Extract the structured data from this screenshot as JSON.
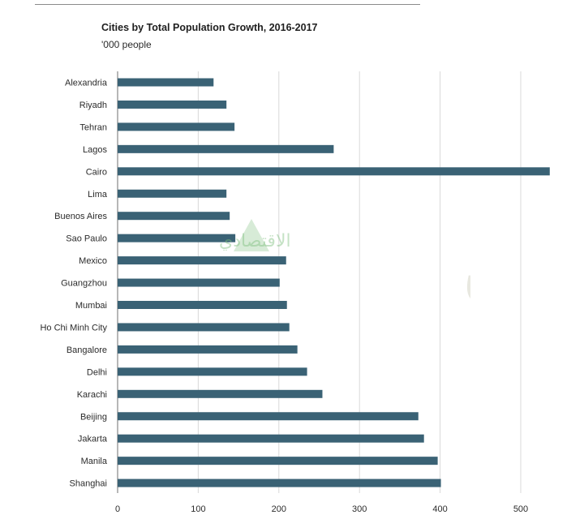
{
  "header": {
    "title": "Cities by Total Population Growth, 2016-2017",
    "subtitle": "'000 people"
  },
  "watermark": {
    "text": "الميزان",
    "subtext": "الاقتصادي"
  },
  "colors": {
    "bar": "#3a6275",
    "grid": "#d9d9d9",
    "axis": "#6f6f6f",
    "text": "#2b2b2b"
  },
  "chart_data": {
    "type": "bar",
    "orientation": "horizontal",
    "title": "Cities by Total Population Growth, 2016-2017",
    "subtitle": "'000 people",
    "xlabel": "",
    "ylabel": "",
    "xlim": [
      0,
      540
    ],
    "xticks": [
      0,
      100,
      200,
      300,
      400,
      500
    ],
    "grid": true,
    "categories": [
      "Alexandria",
      "Riyadh",
      "Tehran",
      "Lagos",
      "Cairo",
      "Lima",
      "Buenos Aires",
      "Sao Paulo",
      "Mexico",
      "Guangzhou",
      "Mumbai",
      "Ho Chi Minh City",
      "Bangalore",
      "Delhi",
      "Karachi",
      "Beijing",
      "Jakarta",
      "Manila",
      "Shanghai"
    ],
    "values": [
      119,
      135,
      145,
      268,
      536,
      135,
      139,
      146,
      209,
      201,
      210,
      213,
      223,
      235,
      254,
      373,
      380,
      397,
      401
    ]
  }
}
